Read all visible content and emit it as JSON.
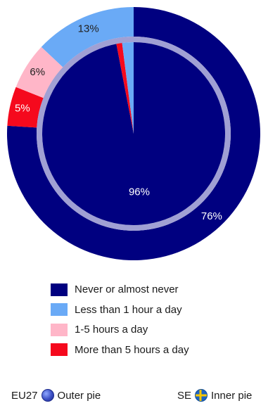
{
  "chart_data": {
    "type": "pie",
    "categories": [
      "Never or almost never",
      "Less than 1 hour a day",
      "1-5 hours a day",
      "More than 5 hours a day"
    ],
    "colors": [
      "#000080",
      "#6aaaf6",
      "#ffb6c8",
      "#f5091d"
    ],
    "series": [
      {
        "name": "Outer pie",
        "values": [
          76,
          13,
          6,
          5
        ],
        "value_labels": [
          "76%",
          "13%",
          "6%",
          "5%"
        ]
      },
      {
        "name": "Inner pie",
        "values": [
          96,
          2,
          0,
          1
        ],
        "value_labels": [
          "96%",
          "",
          "",
          ""
        ]
      }
    ],
    "legend_position": "bottom"
  },
  "footer": {
    "outer": {
      "country": "EU27",
      "flag_icon": "eu-flag-icon",
      "label": "Outer pie"
    },
    "inner": {
      "country": "SE",
      "flag_icon": "se-flag-icon",
      "label": "Inner pie"
    }
  }
}
